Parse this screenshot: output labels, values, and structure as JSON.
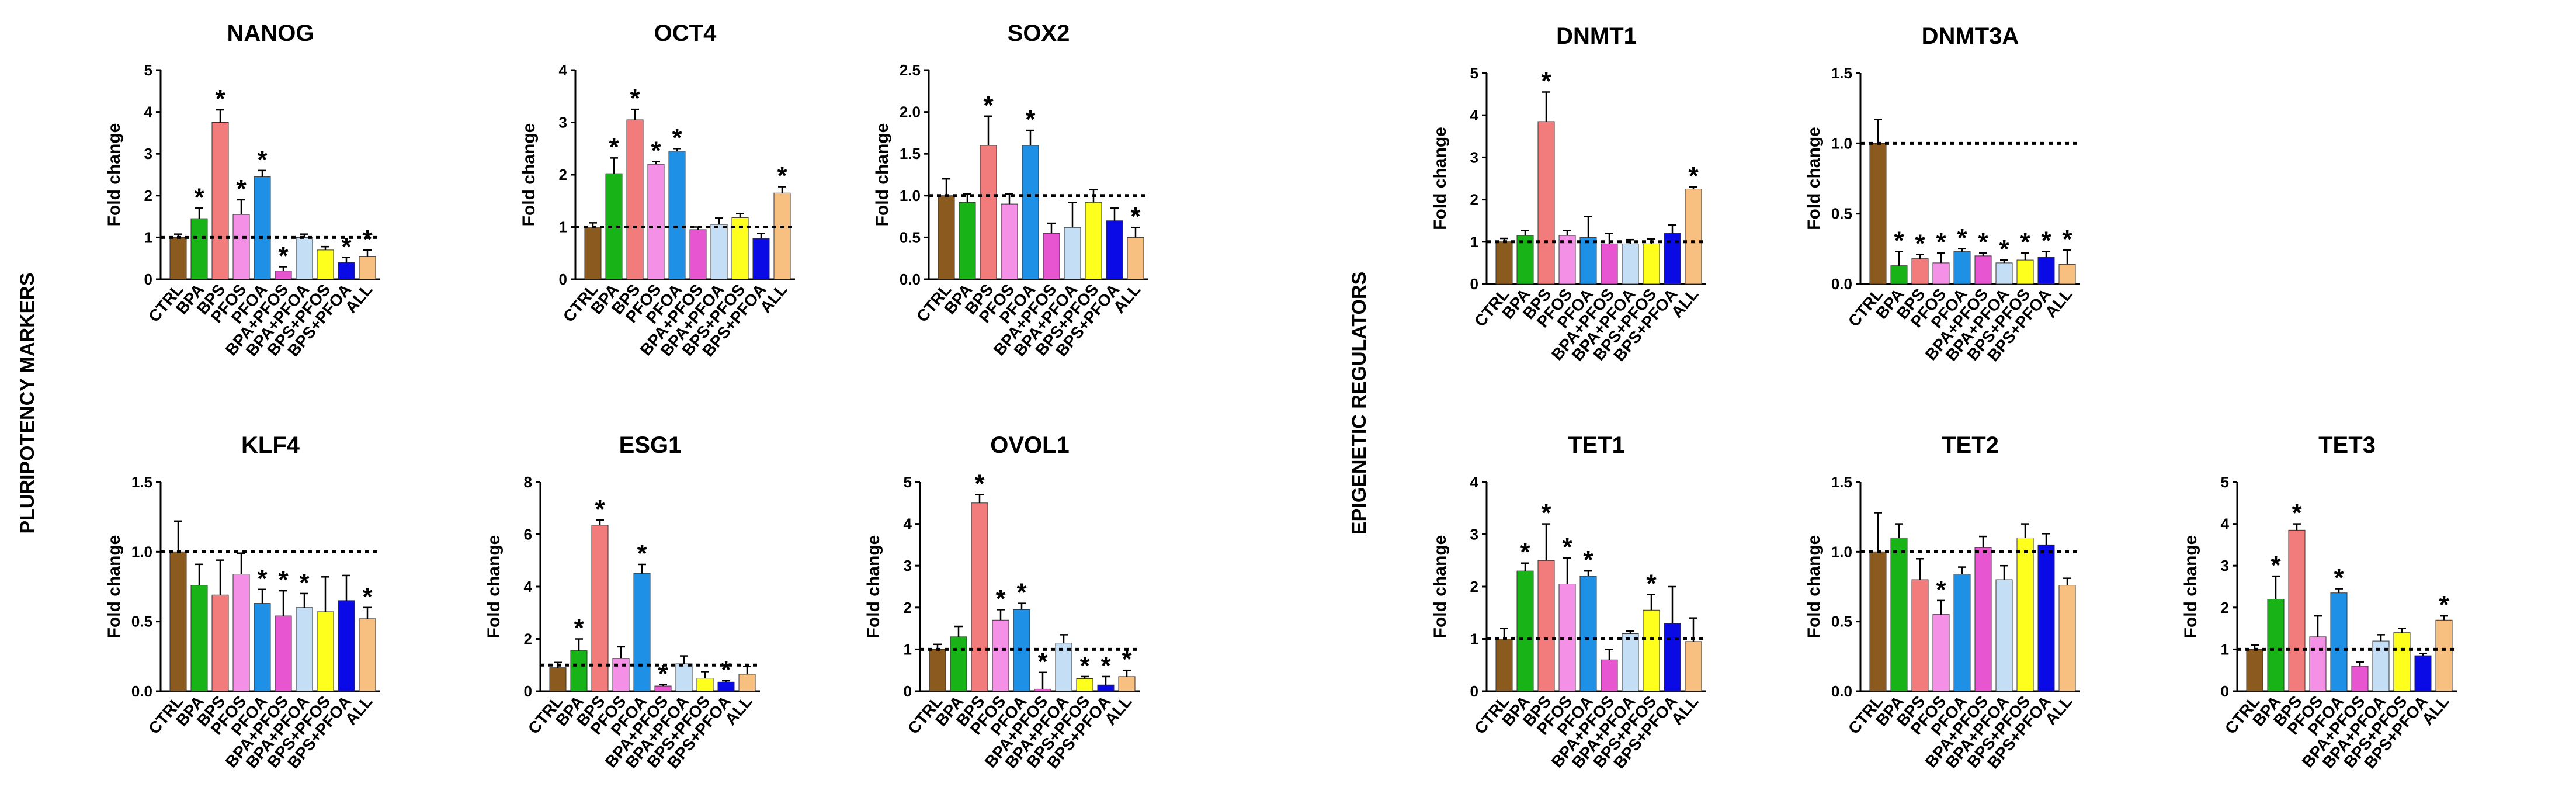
{
  "group_labels": {
    "left": "PLURIPOTENCY MARKERS",
    "right": "EPIGENETIC REGULATORS"
  },
  "categories": [
    "CTRL",
    "BPA",
    "BPS",
    "PFOS",
    "PFOA",
    "BPA+PFOS",
    "BPA+PFOA",
    "BPS+PFOS",
    "BPS+PFOA",
    "ALL"
  ],
  "bar_colors": [
    "#8B5A1E",
    "#17B317",
    "#F27C7C",
    "#F490E6",
    "#1E90E6",
    "#E855D0",
    "#C4DEF5",
    "#FFFF1E",
    "#0A0AE6",
    "#F8C080"
  ],
  "colors": {
    "axis": "#000000",
    "error_bar": "#000000",
    "reference_line": "#000000"
  },
  "chart_data": [
    {
      "type": "bar",
      "title": "NANOG",
      "ylabel": "Fold change",
      "ylim": [
        0,
        5
      ],
      "yticks": [
        "0",
        "1",
        "2",
        "3",
        "4",
        "5"
      ],
      "ref": 1,
      "values": [
        1.0,
        1.45,
        3.75,
        1.55,
        2.45,
        0.2,
        1.0,
        0.7,
        0.4,
        0.55
      ],
      "errors": [
        0.08,
        0.25,
        0.3,
        0.35,
        0.15,
        0.1,
        0.08,
        0.08,
        0.12,
        0.15
      ],
      "stars": [
        "",
        "*",
        "*",
        "*",
        "*",
        "*",
        "",
        "",
        "*",
        "*"
      ]
    },
    {
      "type": "bar",
      "title": "OCT4",
      "ylabel": "Fold change",
      "ylim": [
        0,
        4
      ],
      "yticks": [
        "0",
        "1",
        "2",
        "3",
        "4"
      ],
      "ref": 1,
      "values": [
        1.0,
        2.02,
        3.05,
        2.2,
        2.45,
        0.95,
        1.05,
        1.18,
        0.78,
        1.65
      ],
      "errors": [
        0.08,
        0.3,
        0.2,
        0.05,
        0.05,
        0.05,
        0.12,
        0.08,
        0.1,
        0.12
      ],
      "stars": [
        "",
        "*",
        "*",
        "*",
        "*",
        "",
        "",
        "",
        "",
        "*"
      ]
    },
    {
      "type": "bar",
      "title": "SOX2",
      "ylabel": "Fold change",
      "ylim": [
        0,
        2.5
      ],
      "yticks": [
        "0.0",
        "0.5",
        "1.0",
        "1.5",
        "2.0",
        "2.5"
      ],
      "ref": 1,
      "values": [
        1.0,
        0.92,
        1.6,
        0.9,
        1.6,
        0.55,
        0.62,
        0.92,
        0.7,
        0.5
      ],
      "errors": [
        0.2,
        0.1,
        0.35,
        0.12,
        0.18,
        0.12,
        0.3,
        0.15,
        0.15,
        0.12
      ],
      "stars": [
        "",
        "",
        "*",
        "",
        "*",
        "",
        "",
        "",
        "",
        "*"
      ]
    },
    {
      "type": "bar",
      "title": "KLF4",
      "ylabel": "Fold change",
      "ylim": [
        0,
        1.5
      ],
      "yticks": [
        "0.0",
        "0.5",
        "1.0",
        "1.5"
      ],
      "ref": 1,
      "values": [
        1.0,
        0.76,
        0.69,
        0.84,
        0.63,
        0.54,
        0.6,
        0.57,
        0.65,
        0.52
      ],
      "errors": [
        0.22,
        0.15,
        0.25,
        0.15,
        0.1,
        0.18,
        0.1,
        0.25,
        0.18,
        0.08
      ],
      "stars": [
        "",
        "",
        "",
        "",
        "*",
        "*",
        "*",
        "",
        "",
        "*"
      ]
    },
    {
      "type": "bar",
      "title": "ESG1",
      "ylabel": "Fold change",
      "ylim": [
        0,
        8
      ],
      "yticks": [
        "0",
        "2",
        "4",
        "6",
        "8"
      ],
      "ref": 1,
      "values": [
        0.9,
        1.55,
        6.35,
        1.25,
        4.5,
        0.2,
        1.05,
        0.5,
        0.35,
        0.65
      ],
      "errors": [
        0.2,
        0.45,
        0.2,
        0.45,
        0.35,
        0.05,
        0.3,
        0.25,
        0.05,
        0.3
      ],
      "stars": [
        "",
        "*",
        "*",
        "",
        "*",
        "*",
        "",
        "",
        "*",
        ""
      ]
    },
    {
      "type": "bar",
      "title": "OVOL1",
      "ylabel": "Fold change",
      "ylim": [
        0,
        5
      ],
      "yticks": [
        "0",
        "1",
        "2",
        "3",
        "4",
        "5"
      ],
      "ref": 1,
      "values": [
        1.0,
        1.3,
        4.5,
        1.7,
        1.95,
        0.05,
        1.15,
        0.3,
        0.15,
        0.35
      ],
      "errors": [
        0.12,
        0.25,
        0.2,
        0.25,
        0.15,
        0.4,
        0.2,
        0.05,
        0.2,
        0.15
      ],
      "stars": [
        "",
        "",
        "*",
        "*",
        "*",
        "*",
        "",
        "*",
        "*",
        "*"
      ]
    },
    {
      "type": "bar",
      "title": "DNMT1",
      "ylabel": "Fold change",
      "ylim": [
        0,
        5
      ],
      "yticks": [
        "0",
        "1",
        "2",
        "3",
        "4",
        "5"
      ],
      "ref": 1,
      "values": [
        1.0,
        1.15,
        3.85,
        1.15,
        1.1,
        0.95,
        0.95,
        0.95,
        1.2,
        2.25
      ],
      "errors": [
        0.08,
        0.12,
        0.7,
        0.12,
        0.5,
        0.25,
        0.1,
        0.12,
        0.2,
        0.05
      ],
      "stars": [
        "",
        "",
        "*",
        "",
        "",
        "",
        "",
        "",
        "",
        "*"
      ]
    },
    {
      "type": "bar",
      "title": "DNMT3A",
      "ylabel": "Fold change",
      "ylim": [
        0,
        1.5
      ],
      "yticks": [
        "0.0",
        "0.5",
        "1.0",
        "1.5"
      ],
      "ref": 1,
      "values": [
        1.0,
        0.13,
        0.18,
        0.15,
        0.23,
        0.2,
        0.15,
        0.17,
        0.19,
        0.14
      ],
      "errors": [
        0.17,
        0.1,
        0.03,
        0.07,
        0.02,
        0.02,
        0.02,
        0.05,
        0.04,
        0.1
      ],
      "stars": [
        "",
        "*",
        "*",
        "*",
        "*",
        "*",
        "*",
        "*",
        "*",
        "*"
      ]
    },
    {
      "type": "bar",
      "title": "TET1",
      "ylabel": "Fold change",
      "ylim": [
        0,
        4
      ],
      "yticks": [
        "0",
        "1",
        "2",
        "3",
        "4"
      ],
      "ref": 1,
      "values": [
        1.0,
        2.3,
        2.5,
        2.05,
        2.2,
        0.6,
        1.1,
        1.55,
        1.3,
        0.95
      ],
      "errors": [
        0.2,
        0.15,
        0.7,
        0.5,
        0.1,
        0.2,
        0.05,
        0.3,
        0.7,
        0.45
      ],
      "stars": [
        "",
        "*",
        "*",
        "*",
        "*",
        "",
        "",
        "*",
        "",
        ""
      ]
    },
    {
      "type": "bar",
      "title": "TET2",
      "ylabel": "Fold change",
      "ylim": [
        0,
        1.5
      ],
      "yticks": [
        "0.0",
        "0.5",
        "1.0",
        "1.5"
      ],
      "ref": 1,
      "values": [
        1.0,
        1.1,
        0.8,
        0.55,
        0.84,
        1.03,
        0.8,
        1.1,
        1.05,
        0.76
      ],
      "errors": [
        0.28,
        0.1,
        0.15,
        0.1,
        0.05,
        0.08,
        0.1,
        0.1,
        0.08,
        0.05
      ],
      "stars": [
        "",
        "",
        "",
        "*",
        "",
        "",
        "",
        "",
        "",
        ""
      ]
    },
    {
      "type": "bar",
      "title": "TET3",
      "ylabel": "Fold change",
      "ylim": [
        0,
        5
      ],
      "yticks": [
        "0",
        "1",
        "2",
        "3",
        "4",
        "5"
      ],
      "ref": 1,
      "values": [
        1.0,
        2.2,
        3.85,
        1.3,
        2.35,
        0.6,
        1.2,
        1.4,
        0.85,
        1.7
      ],
      "errors": [
        0.1,
        0.55,
        0.15,
        0.5,
        0.1,
        0.1,
        0.15,
        0.1,
        0.05,
        0.1
      ],
      "stars": [
        "",
        "*",
        "*",
        "",
        "*",
        "",
        "",
        "",
        "",
        "*"
      ]
    }
  ]
}
